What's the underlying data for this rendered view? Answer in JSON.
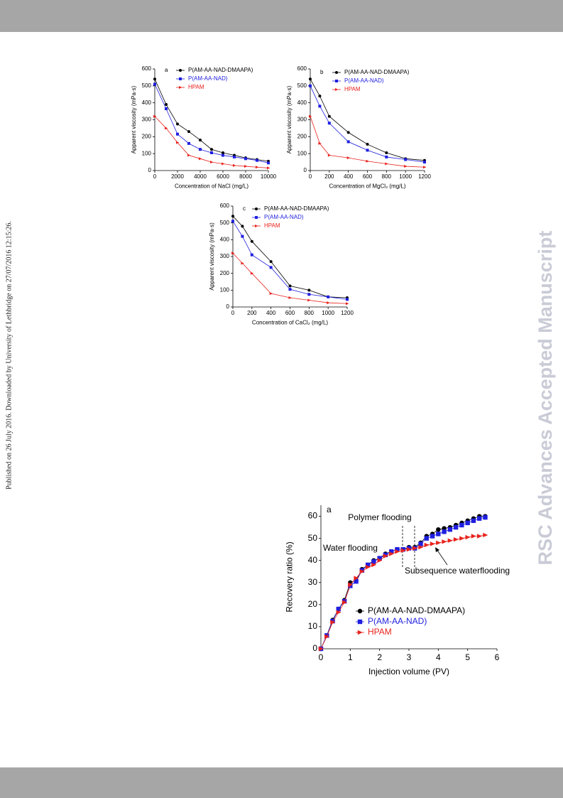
{
  "side_note": "Published on 26 July 2016. Downloaded by University of Lethbridge on 27/07/2016 12:15:26.",
  "watermark": "RSC Advances Accepted Manuscript",
  "chart_data": [
    {
      "type": "line",
      "label": "a",
      "x_label": "Concentration of NaCl (mg/L)",
      "y_label": "Apparent viscosity (mPa·s)",
      "x": [
        0,
        1000,
        2000,
        3000,
        4000,
        5000,
        6000,
        7000,
        8000,
        9000,
        10000
      ],
      "xlim": [
        0,
        10000
      ],
      "xticks": [
        0,
        2000,
        4000,
        6000,
        8000,
        10000
      ],
      "ylim": [
        0,
        600
      ],
      "yticks": [
        0,
        100,
        200,
        300,
        400,
        500,
        600
      ],
      "series": [
        {
          "name": "P(AM-AA-NAD-DMAAPA)",
          "color": "#000000",
          "marker": "circle",
          "values": [
            540,
            390,
            275,
            230,
            180,
            125,
            105,
            90,
            75,
            65,
            55
          ]
        },
        {
          "name": "P(AM-AA-NAD)",
          "color": "#1f1fe0",
          "marker": "square",
          "values": [
            510,
            365,
            215,
            160,
            125,
            105,
            90,
            80,
            70,
            60,
            45
          ]
        },
        {
          "name": "HPAM",
          "color": "#e8221c",
          "marker": "triangle",
          "values": [
            320,
            250,
            165,
            90,
            70,
            50,
            40,
            30,
            25,
            20,
            15
          ]
        }
      ]
    },
    {
      "type": "line",
      "label": "b",
      "x_label": "Concentration of MgCl₂ (mg/L)",
      "y_label": "Apparent viscosity (mPa·s)",
      "x": [
        0,
        100,
        200,
        400,
        600,
        800,
        1000,
        1200
      ],
      "xlim": [
        0,
        1200
      ],
      "xticks": [
        0,
        200,
        400,
        600,
        800,
        1000,
        1200
      ],
      "ylim": [
        0,
        600
      ],
      "yticks": [
        0,
        100,
        200,
        300,
        400,
        500,
        600
      ],
      "series": [
        {
          "name": "P(AM-AA-NAD-DMAAPA)",
          "color": "#000000",
          "marker": "circle",
          "values": [
            540,
            440,
            320,
            225,
            155,
            105,
            70,
            60
          ]
        },
        {
          "name": "P(AM-AA-NAD)",
          "color": "#1f1fe0",
          "marker": "square",
          "values": [
            500,
            380,
            280,
            170,
            120,
            80,
            65,
            50
          ]
        },
        {
          "name": "HPAM",
          "color": "#e8221c",
          "marker": "triangle",
          "values": [
            320,
            160,
            90,
            75,
            55,
            40,
            25,
            20
          ]
        }
      ]
    },
    {
      "type": "line",
      "label": "c",
      "x_label": "Concentration of CaCl₂ (mg/L)",
      "y_label": "Apparent viscosity (mPa·s)",
      "x": [
        0,
        100,
        200,
        400,
        600,
        800,
        1000,
        1200
      ],
      "xlim": [
        0,
        1200
      ],
      "xticks": [
        0,
        200,
        400,
        600,
        800,
        1000,
        1200
      ],
      "ylim": [
        0,
        600
      ],
      "yticks": [
        0,
        100,
        200,
        300,
        400,
        500,
        600
      ],
      "series": [
        {
          "name": "P(AM-AA-NAD-DMAAPA)",
          "color": "#000000",
          "marker": "circle",
          "values": [
            540,
            480,
            390,
            270,
            125,
            100,
            60,
            55
          ]
        },
        {
          "name": "P(AM-AA-NAD)",
          "color": "#1f1fe0",
          "marker": "square",
          "values": [
            510,
            420,
            310,
            235,
            105,
            75,
            60,
            45
          ]
        },
        {
          "name": "HPAM",
          "color": "#e8221c",
          "marker": "triangle",
          "values": [
            320,
            260,
            200,
            80,
            55,
            40,
            25,
            20
          ]
        }
      ]
    },
    {
      "type": "line",
      "label": "a",
      "x_label": "Injection volume (PV)",
      "y_label": "Recovery ratio (%)",
      "annotations": [
        "Polymer flooding",
        "Water flooding",
        "Subsequence waterflooding"
      ],
      "x": [
        0,
        0.2,
        0.4,
        0.6,
        0.8,
        1.0,
        1.2,
        1.4,
        1.6,
        1.8,
        2.0,
        2.2,
        2.4,
        2.6,
        2.8,
        3.0,
        3.2,
        3.4,
        3.6,
        3.8,
        4.0,
        4.2,
        4.4,
        4.6,
        4.8,
        5.0,
        5.2,
        5.4,
        5.6
      ],
      "xlim": [
        0,
        6
      ],
      "xticks": [
        0,
        1,
        2,
        3,
        4,
        5,
        6
      ],
      "ylim": [
        0,
        65
      ],
      "yticks": [
        0,
        10,
        20,
        30,
        40,
        50,
        60
      ],
      "series": [
        {
          "name": "P(AM-AA-NAD-DMAAPA)",
          "color": "#000000",
          "marker": "circle",
          "values": [
            0,
            6,
            13,
            18,
            22,
            30,
            31,
            36,
            38,
            40,
            41,
            43,
            44,
            45,
            45,
            46,
            46,
            48,
            51,
            52,
            54,
            54.5,
            55,
            56,
            57,
            58,
            59,
            60,
            60
          ]
        },
        {
          "name": "P(AM-AA-NAD)",
          "color": "#1f1fe0",
          "marker": "square",
          "values": [
            0,
            6,
            12.5,
            18,
            21.5,
            28.5,
            30.5,
            35.5,
            38,
            39.5,
            41,
            42.5,
            44,
            45,
            45,
            45.5,
            45.5,
            47.5,
            50,
            51,
            52,
            53,
            54,
            55,
            56,
            57,
            58,
            59,
            59.5
          ]
        },
        {
          "name": "HPAM",
          "color": "#e8221c",
          "marker": "triangle",
          "values": [
            0,
            5.5,
            12,
            16.5,
            21,
            29,
            32,
            35,
            37,
            38,
            40,
            42,
            43,
            44,
            44.5,
            45,
            45.5,
            46,
            47,
            47.5,
            48,
            48.5,
            49,
            49.5,
            50,
            50.5,
            51,
            51,
            51.5
          ]
        }
      ]
    }
  ]
}
